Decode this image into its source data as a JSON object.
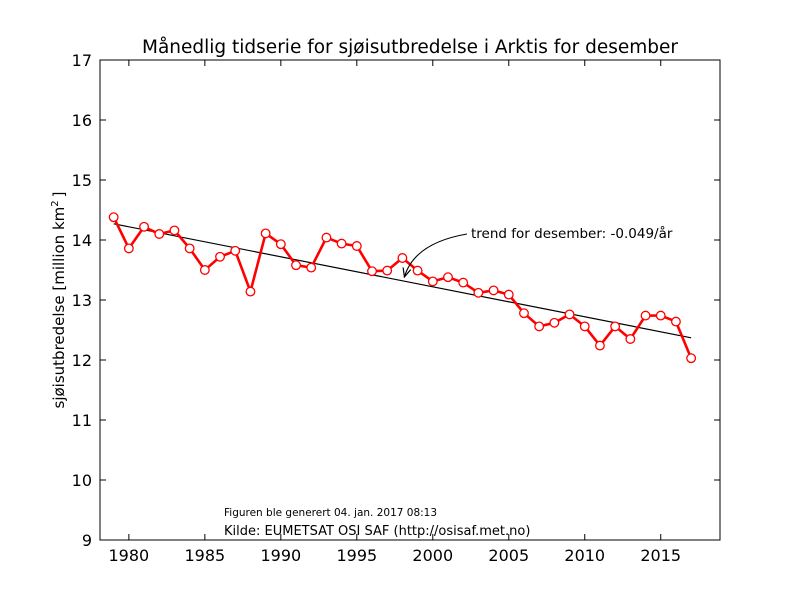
{
  "chart_data": {
    "type": "line",
    "title": "Månedlig tidserie for sjøisutbredelse i Arktis for desember",
    "ylabel_main": "sjøisutbredelse [million km",
    "ylabel_sup": "2",
    "ylabel_end": "]",
    "xlabel": "",
    "xlim": [
      1978.1,
      2018.9
    ],
    "ylim": [
      9,
      17
    ],
    "xticks": [
      1980,
      1985,
      1990,
      1995,
      2000,
      2005,
      2010,
      2015
    ],
    "yticks": [
      9,
      10,
      11,
      12,
      13,
      14,
      15,
      16,
      17
    ],
    "grid": false,
    "series": [
      {
        "color": "#ff0000",
        "marker": "open-circle",
        "points": [
          {
            "x": 1979,
            "y": 14.38
          },
          {
            "x": 1980,
            "y": 13.86
          },
          {
            "x": 1981,
            "y": 14.22
          },
          {
            "x": 1982,
            "y": 14.1
          },
          {
            "x": 1983,
            "y": 14.16
          },
          {
            "x": 1984,
            "y": 13.86
          },
          {
            "x": 1985,
            "y": 13.5
          },
          {
            "x": 1986,
            "y": 13.72
          },
          {
            "x": 1987,
            "y": 13.82
          },
          {
            "x": 1988,
            "y": 13.14
          },
          {
            "x": 1989,
            "y": 14.11
          },
          {
            "x": 1990,
            "y": 13.93
          },
          {
            "x": 1991,
            "y": 13.58
          },
          {
            "x": 1992,
            "y": 13.54
          },
          {
            "x": 1993,
            "y": 14.04
          },
          {
            "x": 1994,
            "y": 13.94
          },
          {
            "x": 1995,
            "y": 13.9
          },
          {
            "x": 1996,
            "y": 13.48
          },
          {
            "x": 1997,
            "y": 13.49
          },
          {
            "x": 1998,
            "y": 13.7
          },
          {
            "x": 1999,
            "y": 13.49
          },
          {
            "x": 2000,
            "y": 13.31
          },
          {
            "x": 2001,
            "y": 13.38
          },
          {
            "x": 2002,
            "y": 13.29
          },
          {
            "x": 2003,
            "y": 13.12
          },
          {
            "x": 2004,
            "y": 13.16
          },
          {
            "x": 2005,
            "y": 13.09
          },
          {
            "x": 2006,
            "y": 12.78
          },
          {
            "x": 2007,
            "y": 12.56
          },
          {
            "x": 2008,
            "y": 12.62
          },
          {
            "x": 2009,
            "y": 12.76
          },
          {
            "x": 2010,
            "y": 12.56
          },
          {
            "x": 2011,
            "y": 12.24
          },
          {
            "x": 2012,
            "y": 12.56
          },
          {
            "x": 2013,
            "y": 12.35
          },
          {
            "x": 2014,
            "y": 12.74
          },
          {
            "x": 2015,
            "y": 12.74
          },
          {
            "x": 2016,
            "y": 12.64
          },
          {
            "x": 2017,
            "y": 12.03
          }
        ]
      }
    ],
    "trendline": {
      "color": "#000000",
      "points": [
        {
          "x": 1979,
          "y": 14.27
        },
        {
          "x": 2017,
          "y": 12.37
        }
      ]
    },
    "annotation": {
      "text": "trend for desember: -0.049/år",
      "arrow_target": {
        "x": 1998,
        "y": 13.35
      }
    },
    "footer_generated": "Figuren ble generert 04. jan. 2017 08:13",
    "footer_source": "Kilde: EUMETSAT OSI SAF (http://osisaf.met.no)"
  }
}
